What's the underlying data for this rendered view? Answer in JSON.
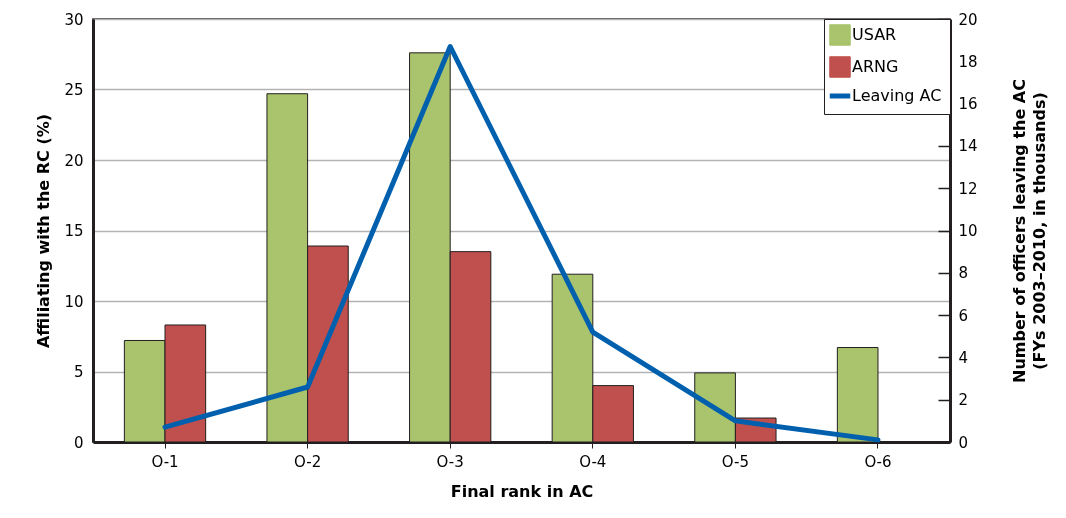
{
  "chart_data": {
    "type": "bar",
    "xlabel": "Final rank in AC",
    "ylabel": "Affiliating with the RC (%)",
    "y2label": "Number of officers leaving the AC\n(FYs 2003–2010, in thousands)",
    "categories": [
      "O-1",
      "O-2",
      "O-3",
      "O-4",
      "O-5",
      "O-6"
    ],
    "series": [
      {
        "name": "USAR",
        "color": "#a9c46c",
        "values": [
          7.2,
          24.7,
          27.6,
          11.9,
          4.9,
          6.7
        ]
      },
      {
        "name": "ARNG",
        "color": "#c0504d",
        "values": [
          8.3,
          13.9,
          13.5,
          4.0,
          1.7,
          null
        ]
      },
      {
        "name": "Leaving AC",
        "type": "line",
        "axis": "y2",
        "color": "#0060ad",
        "values": [
          0.7,
          2.6,
          18.7,
          5.2,
          1.0,
          0.1
        ]
      }
    ],
    "ylim": [
      0,
      30
    ],
    "yticks": [
      0,
      5,
      10,
      15,
      20,
      25,
      30
    ],
    "y2lim": [
      0,
      20
    ],
    "y2ticks": [
      0,
      2,
      4,
      6,
      8,
      10,
      12,
      14,
      16,
      18,
      20
    ],
    "grid": "y",
    "legend": "top right"
  }
}
